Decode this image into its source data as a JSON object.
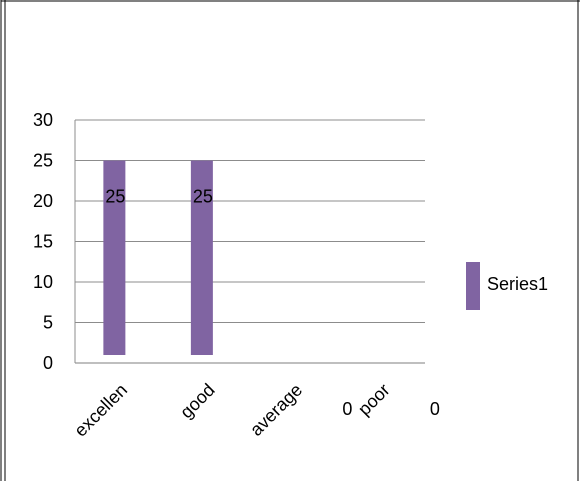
{
  "chart_data": {
    "type": "bar",
    "categories": [
      "excellen",
      "good",
      "average",
      "poor"
    ],
    "series": [
      {
        "name": "Series1",
        "values": [
          25,
          25,
          0,
          0
        ],
        "data_labels": [
          "25",
          "25",
          "0",
          "0"
        ],
        "color": "#8064a2"
      }
    ],
    "title": "",
    "xlabel": "",
    "ylabel": "",
    "ylim": [
      0,
      30
    ],
    "yticks": [
      "0",
      "5",
      "10",
      "15",
      "20",
      "25",
      "30"
    ],
    "grid": true,
    "legend": "right"
  }
}
